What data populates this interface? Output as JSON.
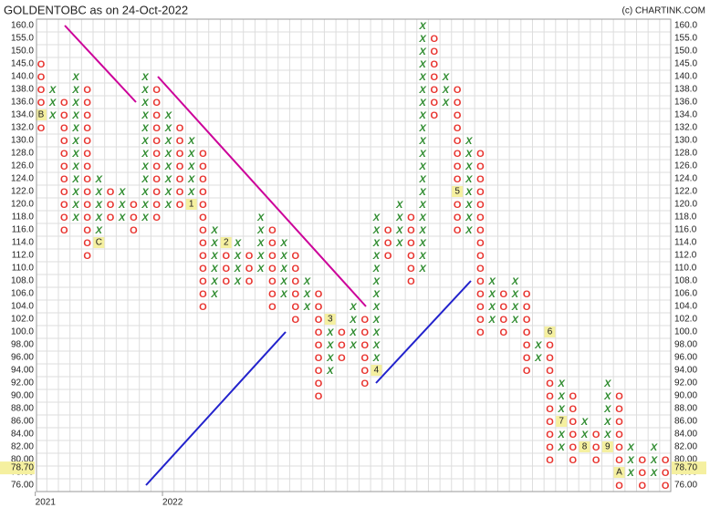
{
  "chart_data": {
    "type": "point-and-figure",
    "title": "GOLDENTOBC as on 24-Oct-2022",
    "credit": "(c) CHARTINK.COM",
    "colors": {
      "X": "#2e8b2e",
      "O": "#e8332e",
      "marker": "#f5f0a0"
    },
    "yticks": [
      {
        "value": 160,
        "label": "160.0"
      },
      {
        "value": 155,
        "label": "155.0"
      },
      {
        "value": 150,
        "label": "150.0"
      },
      {
        "value": 145,
        "label": "145.0"
      },
      {
        "value": 140,
        "label": "140.0"
      },
      {
        "value": 138,
        "label": "138.0"
      },
      {
        "value": 136,
        "label": "136.0"
      },
      {
        "value": 134,
        "label": "134.0"
      },
      {
        "value": 132,
        "label": "132.0"
      },
      {
        "value": 130,
        "label": "130.0"
      },
      {
        "value": 128,
        "label": "128.0"
      },
      {
        "value": 126,
        "label": "126.0"
      },
      {
        "value": 124,
        "label": "124.0"
      },
      {
        "value": 122,
        "label": "122.0"
      },
      {
        "value": 120,
        "label": "120.0"
      },
      {
        "value": 118,
        "label": "118.0"
      },
      {
        "value": 116,
        "label": "116.0"
      },
      {
        "value": 114,
        "label": "114.0"
      },
      {
        "value": 112,
        "label": "112.0"
      },
      {
        "value": 110,
        "label": "110.0"
      },
      {
        "value": 108,
        "label": "108.0"
      },
      {
        "value": 106,
        "label": "106.0"
      },
      {
        "value": 104,
        "label": "104.0"
      },
      {
        "value": 102,
        "label": "102.0"
      },
      {
        "value": 100,
        "label": "100.0"
      },
      {
        "value": 98,
        "label": "98.00"
      },
      {
        "value": 96,
        "label": "96.00"
      },
      {
        "value": 94,
        "label": "94.00"
      },
      {
        "value": 92,
        "label": "92.00"
      },
      {
        "value": 90,
        "label": "90.00"
      },
      {
        "value": 88,
        "label": "88.00"
      },
      {
        "value": 86,
        "label": "86.00"
      },
      {
        "value": 84,
        "label": "84.00"
      },
      {
        "value": 82,
        "label": "82.00"
      },
      {
        "value": 80,
        "label": "80.00"
      },
      {
        "value": 78,
        "label": "78.00"
      },
      {
        "value": 76,
        "label": "76.00"
      }
    ],
    "last_price": {
      "value": 78.7,
      "label": "78.70"
    },
    "year_labels": [
      {
        "label": "2021",
        "column": 0
      },
      {
        "label": "2022",
        "column": 11
      }
    ],
    "columns": [
      {
        "type": "O",
        "top": 145,
        "bottom": 132,
        "markers": [
          {
            "price": 134,
            "label": "B"
          }
        ]
      },
      {
        "type": "X",
        "top": 138,
        "bottom": 134
      },
      {
        "type": "O",
        "top": 136,
        "bottom": 116
      },
      {
        "type": "X",
        "top": 140,
        "bottom": 118
      },
      {
        "type": "O",
        "top": 138,
        "bottom": 112
      },
      {
        "type": "X",
        "top": 124,
        "bottom": 114,
        "markers": [
          {
            "price": 114,
            "label": "C"
          }
        ]
      },
      {
        "type": "O",
        "top": 122,
        "bottom": 118
      },
      {
        "type": "X",
        "top": 122,
        "bottom": 118
      },
      {
        "type": "O",
        "top": 120,
        "bottom": 116
      },
      {
        "type": "X",
        "top": 140,
        "bottom": 118
      },
      {
        "type": "O",
        "top": 138,
        "bottom": 118
      },
      {
        "type": "X",
        "top": 134,
        "bottom": 120
      },
      {
        "type": "O",
        "top": 132,
        "bottom": 120
      },
      {
        "type": "X",
        "top": 130,
        "bottom": 120,
        "markers": [
          {
            "price": 120,
            "label": "1"
          }
        ]
      },
      {
        "type": "O",
        "top": 128,
        "bottom": 104
      },
      {
        "type": "X",
        "top": 116,
        "bottom": 106
      },
      {
        "type": "O",
        "top": 114,
        "bottom": 108,
        "markers": [
          {
            "price": 114,
            "label": "2"
          }
        ]
      },
      {
        "type": "X",
        "top": 114,
        "bottom": 108
      },
      {
        "type": "O",
        "top": 112,
        "bottom": 108
      },
      {
        "type": "X",
        "top": 118,
        "bottom": 110
      },
      {
        "type": "O",
        "top": 116,
        "bottom": 104
      },
      {
        "type": "X",
        "top": 114,
        "bottom": 106
      },
      {
        "type": "O",
        "top": 112,
        "bottom": 102
      },
      {
        "type": "X",
        "top": 108,
        "bottom": 104
      },
      {
        "type": "O",
        "top": 106,
        "bottom": 90
      },
      {
        "type": "X",
        "top": 102,
        "bottom": 94,
        "markers": [
          {
            "price": 102,
            "label": "3"
          }
        ]
      },
      {
        "type": "O",
        "top": 100,
        "bottom": 96
      },
      {
        "type": "X",
        "top": 104,
        "bottom": 98
      },
      {
        "type": "O",
        "top": 102,
        "bottom": 92
      },
      {
        "type": "X",
        "top": 118,
        "bottom": 94,
        "markers": [
          {
            "price": 94,
            "label": "4"
          }
        ]
      },
      {
        "type": "O",
        "top": 116,
        "bottom": 112
      },
      {
        "type": "X",
        "top": 120,
        "bottom": 114
      },
      {
        "type": "O",
        "top": 118,
        "bottom": 108
      },
      {
        "type": "X",
        "top": 160,
        "bottom": 110
      },
      {
        "type": "O",
        "top": 155,
        "bottom": 134
      },
      {
        "type": "X",
        "top": 140,
        "bottom": 136
      },
      {
        "type": "O",
        "top": 138,
        "bottom": 116,
        "markers": [
          {
            "price": 122,
            "label": "5"
          }
        ]
      },
      {
        "type": "X",
        "top": 130,
        "bottom": 116
      },
      {
        "type": "O",
        "top": 128,
        "bottom": 100
      },
      {
        "type": "X",
        "top": 108,
        "bottom": 102
      },
      {
        "type": "O",
        "top": 106,
        "bottom": 100
      },
      {
        "type": "X",
        "top": 108,
        "bottom": 102
      },
      {
        "type": "O",
        "top": 106,
        "bottom": 94
      },
      {
        "type": "X",
        "top": 98,
        "bottom": 96
      },
      {
        "type": "O",
        "top": 100,
        "bottom": 80,
        "markers": [
          {
            "price": 100,
            "label": "6"
          }
        ]
      },
      {
        "type": "X",
        "top": 92,
        "bottom": 82,
        "markers": [
          {
            "price": 86,
            "label": "7"
          }
        ]
      },
      {
        "type": "O",
        "top": 90,
        "bottom": 80
      },
      {
        "type": "X",
        "top": 86,
        "bottom": 82,
        "markers": [
          {
            "price": 82,
            "label": "8"
          }
        ]
      },
      {
        "type": "O",
        "top": 84,
        "bottom": 80
      },
      {
        "type": "X",
        "top": 92,
        "bottom": 82,
        "markers": [
          {
            "price": 82,
            "label": "9"
          }
        ]
      },
      {
        "type": "O",
        "top": 90,
        "bottom": 76,
        "markers": [
          {
            "price": 78,
            "label": "A"
          }
        ]
      },
      {
        "type": "X",
        "top": 82,
        "bottom": 78
      },
      {
        "type": "O",
        "top": 80,
        "bottom": 76
      },
      {
        "type": "X",
        "top": 82,
        "bottom": 78
      },
      {
        "type": "O",
        "top": 80,
        "bottom": 76
      }
    ]
  }
}
